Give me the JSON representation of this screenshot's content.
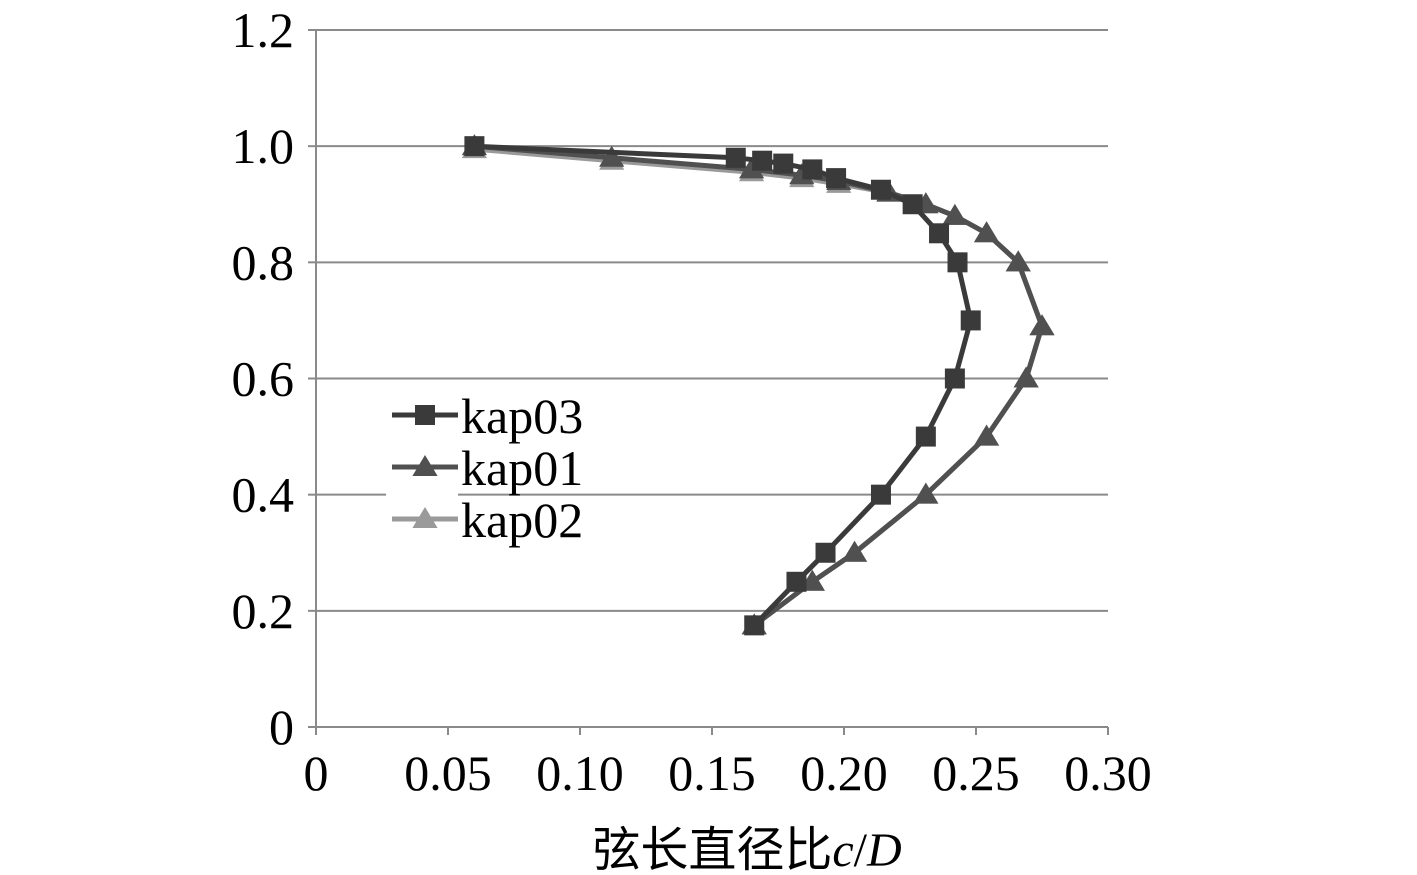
{
  "chart_data": {
    "type": "line",
    "xlabel_prefix": "弦长直径比",
    "xlabel_symbol": "c",
    "xlabel_slash": "/",
    "xlabel_symbol2": "D",
    "ylabel": "",
    "xlim": [
      0,
      0.3
    ],
    "ylim": [
      0,
      1.2
    ],
    "x_ticks": [
      "0",
      "0.05",
      "0.10",
      "0.15",
      "0.20",
      "0.25",
      "0.30"
    ],
    "y_ticks": [
      "0",
      "0.2",
      "0.4",
      "0.6",
      "0.8",
      "1.0",
      "1.2"
    ],
    "grid": "horizontal",
    "legend_position": "center-left",
    "series": [
      {
        "name": "kap03",
        "marker": "square",
        "color": "#3a3a3a",
        "points": [
          [
            0.166,
            0.175
          ],
          [
            0.182,
            0.25
          ],
          [
            0.193,
            0.3
          ],
          [
            0.214,
            0.4
          ],
          [
            0.231,
            0.5
          ],
          [
            0.242,
            0.6
          ],
          [
            0.248,
            0.7
          ],
          [
            0.243,
            0.8
          ],
          [
            0.236,
            0.85
          ],
          [
            0.226,
            0.9
          ],
          [
            0.214,
            0.925
          ],
          [
            0.197,
            0.945
          ],
          [
            0.188,
            0.96
          ],
          [
            0.177,
            0.97
          ],
          [
            0.169,
            0.975
          ],
          [
            0.159,
            0.98
          ],
          [
            0.06,
            1.0
          ]
        ]
      },
      {
        "name": "kap01",
        "marker": "triangle",
        "color": "#505050",
        "points": [
          [
            0.166,
            0.175
          ],
          [
            0.188,
            0.25
          ],
          [
            0.204,
            0.3
          ],
          [
            0.231,
            0.4
          ],
          [
            0.254,
            0.5
          ],
          [
            0.269,
            0.6
          ],
          [
            0.275,
            0.69
          ],
          [
            0.266,
            0.8
          ],
          [
            0.254,
            0.85
          ],
          [
            0.242,
            0.88
          ],
          [
            0.231,
            0.9
          ],
          [
            0.217,
            0.92
          ],
          [
            0.198,
            0.94
          ],
          [
            0.184,
            0.95
          ],
          [
            0.165,
            0.96
          ],
          [
            0.112,
            0.98
          ],
          [
            0.06,
            1.0
          ]
        ]
      },
      {
        "name": "kap02",
        "marker": "triangle",
        "color": "#9a9a9a",
        "points": [
          [
            0.166,
            0.175
          ],
          [
            0.188,
            0.25
          ],
          [
            0.204,
            0.3
          ],
          [
            0.231,
            0.4
          ],
          [
            0.254,
            0.5
          ],
          [
            0.269,
            0.6
          ],
          [
            0.275,
            0.69
          ],
          [
            0.266,
            0.8
          ],
          [
            0.254,
            0.85
          ],
          [
            0.242,
            0.88
          ],
          [
            0.231,
            0.9
          ],
          [
            0.217,
            0.92
          ],
          [
            0.198,
            0.935
          ],
          [
            0.184,
            0.945
          ],
          [
            0.165,
            0.955
          ],
          [
            0.112,
            0.975
          ],
          [
            0.06,
            0.995
          ]
        ]
      }
    ]
  }
}
